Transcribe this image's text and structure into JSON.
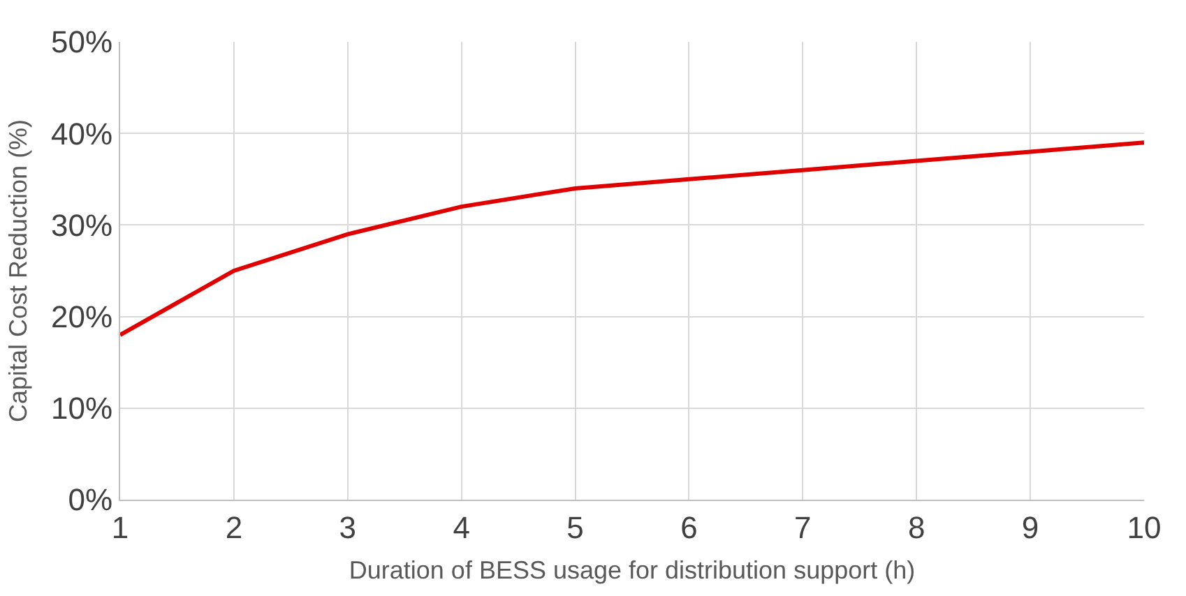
{
  "chart_data": {
    "type": "line",
    "xlabel": "Duration of BESS usage for distribution support (h)",
    "ylabel": "Capital Cost Reduction (%)",
    "x": [
      1,
      2,
      3,
      4,
      5,
      6,
      7,
      8,
      9,
      10
    ],
    "series": [
      {
        "color": "#e00000",
        "values": [
          18,
          25,
          29,
          32,
          34,
          35,
          36,
          37,
          38,
          39
        ]
      }
    ],
    "xlim": [
      1,
      10
    ],
    "xticks": [
      1,
      2,
      3,
      4,
      5,
      6,
      7,
      8,
      9,
      10
    ],
    "ylim": [
      0,
      50
    ],
    "yticks": [
      {
        "value": 0,
        "label": "0%"
      },
      {
        "value": 10,
        "label": "10%"
      },
      {
        "value": 20,
        "label": "20%"
      },
      {
        "value": 30,
        "label": "30%"
      },
      {
        "value": 40,
        "label": "40%"
      },
      {
        "value": 50,
        "label": "50%"
      }
    ],
    "grid": true,
    "marker": "none",
    "line_style": "solid"
  }
}
